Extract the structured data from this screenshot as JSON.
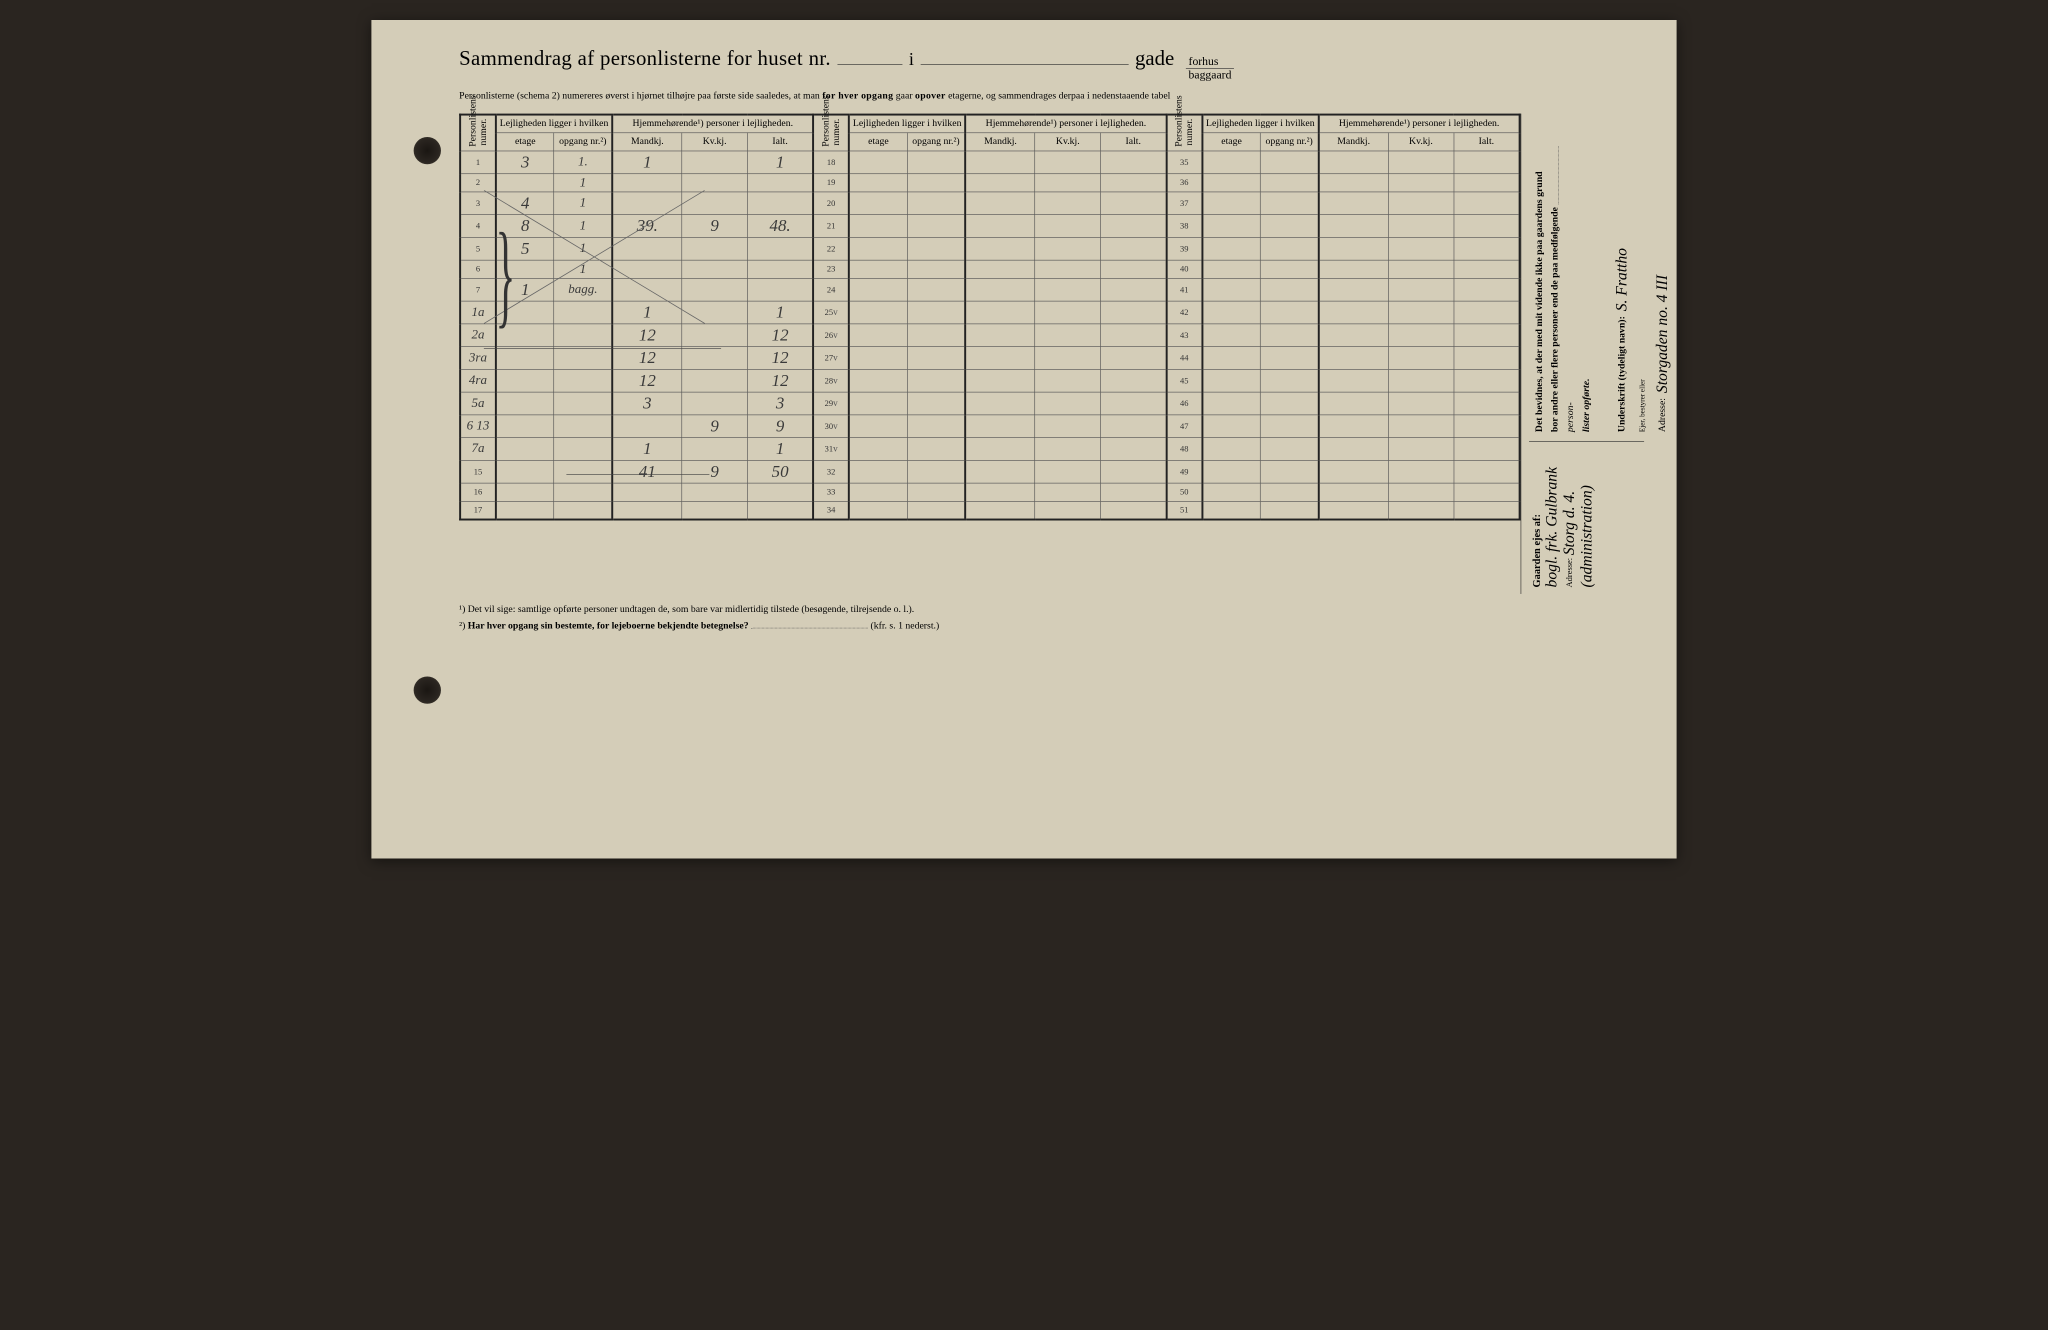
{
  "header": {
    "title": "Sammendrag af personlisterne for huset nr.",
    "i": "i",
    "gade": "gade",
    "forhus": "forhus",
    "baggaard": "baggaard",
    "subtitle_pre": "Personlisterne (schema 2) numereres øverst i hjørnet tilhøjre paa første side saaledes, at man ",
    "subtitle_b1": "for hver opgang",
    "subtitle_mid": " gaar ",
    "subtitle_b2": "opover",
    "subtitle_post": " etagerne, og sammendrages derpaa i nedenstaaende tabel"
  },
  "table_headers": {
    "personlistens_numer": "Personlistens numer.",
    "lejligheden": "Lejligheden ligger i hvilken",
    "hjemmehorende": "Hjemmehørende¹) personer i lejligheden.",
    "etage": "etage",
    "opgang": "opgang nr.²)",
    "mandkj": "Mandkj.",
    "kvkj": "Kv.kj.",
    "ialt": "Ialt."
  },
  "rows": [
    {
      "n": "1",
      "etage": "3",
      "opg": "1.",
      "mk": "1",
      "kv": "",
      "ialt": "1"
    },
    {
      "n": "2",
      "etage": "",
      "opg": "1",
      "mk": "",
      "kv": "",
      "ialt": ""
    },
    {
      "n": "3",
      "etage": "4",
      "opg": "1",
      "mk": "",
      "kv": "",
      "ialt": ""
    },
    {
      "n": "4",
      "etage": "8",
      "opg": "1",
      "mk": "39.",
      "kv": "9",
      "ialt": "48."
    },
    {
      "n": "5",
      "etage": "5",
      "opg": "1",
      "mk": "",
      "kv": "",
      "ialt": ""
    },
    {
      "n": "6",
      "etage": "",
      "opg": "1",
      "mk": "",
      "kv": "",
      "ialt": ""
    },
    {
      "n": "7",
      "etage": "1",
      "opg": "bagg.",
      "mk": "",
      "kv": "",
      "ialt": ""
    },
    {
      "n": "8",
      "override": "1a",
      "etage": "",
      "opg": "",
      "mk": "1",
      "kv": "",
      "ialt": "1"
    },
    {
      "n": "9",
      "override": "2a",
      "etage": "",
      "opg": "",
      "mk": "12",
      "kv": "",
      "ialt": "12"
    },
    {
      "n": "10",
      "override": "3ra",
      "etage": "",
      "opg": "",
      "mk": "12",
      "kv": "",
      "ialt": "12"
    },
    {
      "n": "11",
      "override": "4ra",
      "etage": "",
      "opg": "",
      "mk": "12",
      "kv": "",
      "ialt": "12"
    },
    {
      "n": "12",
      "override": "5a",
      "etage": "",
      "opg": "",
      "mk": "3",
      "kv": "",
      "ialt": "3"
    },
    {
      "n": "13",
      "override": "6 13",
      "etage": "",
      "opg": "",
      "mk": "",
      "kv": "9",
      "ialt": "9"
    },
    {
      "n": "14",
      "override": "7a",
      "etage": "",
      "opg": "",
      "mk": "1",
      "kv": "",
      "ialt": "1"
    },
    {
      "n": "15",
      "etage": "",
      "opg": "",
      "mk": "41",
      "kv": "9",
      "ialt": "50"
    },
    {
      "n": "16",
      "etage": "",
      "opg": "",
      "mk": "",
      "kv": "",
      "ialt": ""
    },
    {
      "n": "17",
      "etage": "",
      "opg": "",
      "mk": "",
      "kv": "",
      "ialt": ""
    }
  ],
  "rows2_start": 18,
  "rows3_start": 35,
  "checkmarks": [
    "25",
    "26",
    "27",
    "28",
    "29",
    "30",
    "31"
  ],
  "footnotes": {
    "f1": "¹) Det vil sige: samtlige opførte personer undtagen de, som bare var midlertidig tilstede (besøgende, tilrejsende o. l.).",
    "f2_pre": "²) ",
    "f2_b": "Har hver opgang sin bestemte, for lejeboerne bekjendte betegnelse?",
    "f2_post": "(kfr. s. 1 nederst.)"
  },
  "sidebar": {
    "attest_line1": "Det bevidnes, at der med mit vidende ikke paa gaardens grund",
    "attest_line2": "bor andre eller flere personer end de paa medfølgende",
    "attest_line3": "person-",
    "attest_line4": "lister opførte.",
    "underskrift_label": "Underskrift (tydeligt navn):",
    "underskrift_hand": "S. Frattho",
    "bestyr": "Ejer, bestyrer eller",
    "adresse_label": "Adresse:",
    "adresse_hand": "Storgaden no. 4 III",
    "gaarden_ejes": "Gaarden ejes af:",
    "owner_hand": "bogl. frk. Gulbrank",
    "adresse2_label": "Adresse:",
    "adresse2_hand": "Storg d. 4.",
    "admin_hand": "(administration)"
  }
}
